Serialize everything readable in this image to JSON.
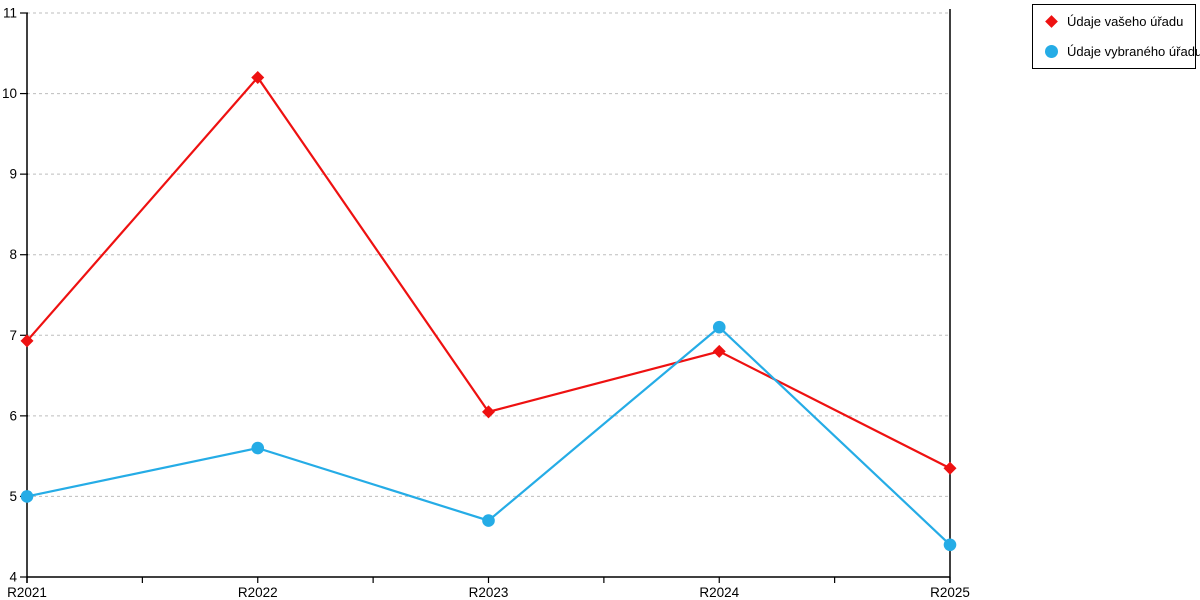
{
  "chart_data": {
    "type": "line",
    "categories": [
      "R2021",
      "R2022",
      "R2023",
      "R2024",
      "R2025"
    ],
    "series": [
      {
        "name": "Údaje vašeho úřadu",
        "color": "#ee1111",
        "marker": "diamond",
        "values": [
          6.93,
          10.2,
          6.05,
          6.8,
          5.35
        ]
      },
      {
        "name": "Údaje vybraného úřadu",
        "color": "#25ace6",
        "marker": "circle",
        "values": [
          5.0,
          5.6,
          4.7,
          7.1,
          4.4
        ]
      }
    ],
    "title": "",
    "xlabel": "",
    "ylabel": "",
    "ylim": [
      4,
      11
    ],
    "yticks": [
      4,
      5,
      6,
      7,
      8,
      9,
      10,
      11
    ],
    "grid": "horizontal-dashed",
    "legend_position": "top-right"
  }
}
